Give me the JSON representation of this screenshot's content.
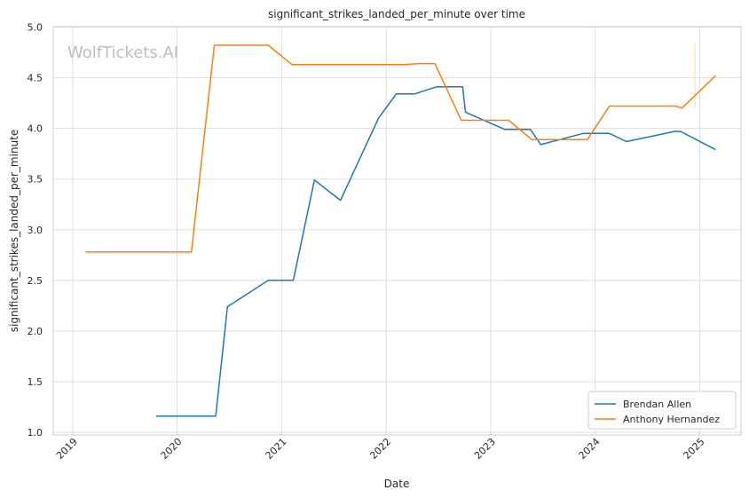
{
  "chart_data": {
    "type": "line",
    "title": "significant_strikes_landed_per_minute over time",
    "xlabel": "Date",
    "ylabel": "significant_strikes_landed_per_minute",
    "watermark": "WolfTickets.AI",
    "x_tick_labels": [
      "2019",
      "2020",
      "2021",
      "2022",
      "2023",
      "2024",
      "2025"
    ],
    "y_tick_labels": [
      "1.0",
      "1.5",
      "2.0",
      "2.5",
      "3.0",
      "3.5",
      "4.0",
      "4.5",
      "5.0"
    ],
    "ylim": [
      1.0,
      5.0
    ],
    "xlim": [
      "2018-10-25",
      "2025-05-25"
    ],
    "grid": true,
    "legend_position": "lower right",
    "series": [
      {
        "name": "Brendan Allen",
        "color": "#1f77b4",
        "points": [
          [
            "2019-10-20",
            1.16
          ],
          [
            "2020-05-15",
            1.16
          ],
          [
            "2020-06-25",
            2.24
          ],
          [
            "2020-11-15",
            2.5
          ],
          [
            "2021-02-10",
            2.5
          ],
          [
            "2021-04-25",
            3.49
          ],
          [
            "2021-07-25",
            3.29
          ],
          [
            "2021-12-05",
            4.1
          ],
          [
            "2022-02-05",
            4.34
          ],
          [
            "2022-04-10",
            4.34
          ],
          [
            "2022-06-25",
            4.41
          ],
          [
            "2022-09-25",
            4.41
          ],
          [
            "2022-10-05",
            4.16
          ],
          [
            "2023-02-20",
            3.99
          ],
          [
            "2023-05-20",
            3.99
          ],
          [
            "2023-06-25",
            3.84
          ],
          [
            "2023-11-20",
            3.95
          ],
          [
            "2024-02-20",
            3.95
          ],
          [
            "2024-04-20",
            3.87
          ],
          [
            "2024-10-05",
            3.97
          ],
          [
            "2024-10-25",
            3.97
          ],
          [
            "2025-02-25",
            3.79
          ]
        ]
      },
      {
        "name": "Anthony Hernandez",
        "color": "#ff7f0e",
        "points": [
          [
            "2019-02-15",
            2.78
          ],
          [
            "2020-02-20",
            2.78
          ],
          [
            "2020-05-10",
            4.82
          ],
          [
            "2020-11-15",
            4.82
          ],
          [
            "2021-02-05",
            4.63
          ],
          [
            "2022-03-05",
            4.63
          ],
          [
            "2022-04-25",
            4.64
          ],
          [
            "2022-06-20",
            4.64
          ],
          [
            "2022-09-20",
            4.08
          ],
          [
            "2023-03-05",
            4.08
          ],
          [
            "2023-05-25",
            3.89
          ],
          [
            "2023-12-05",
            3.89
          ],
          [
            "2024-02-20",
            4.22
          ],
          [
            "2024-10-10",
            4.22
          ],
          [
            "2024-10-30",
            4.2
          ],
          [
            "2025-02-25",
            4.52
          ]
        ]
      }
    ]
  }
}
